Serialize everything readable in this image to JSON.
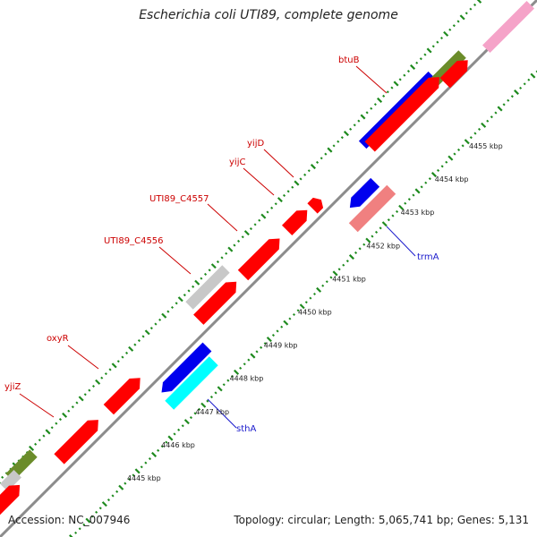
{
  "title": "Escherichia coli UTI89, complete genome",
  "footer": {
    "accession": "Accession: NC_007946",
    "topology": "Topology: circular; Length: 5,065,741 bp; Genes: 5,131"
  },
  "colors": {
    "backbone": "#8c8c8c",
    "tick_outer": "#1e8a1e",
    "tick_inner": "#1e8a1e",
    "label_forward": "#cc0000",
    "label_reverse": "#1a1acc",
    "red": "#ff0000",
    "blue": "#0000ee",
    "olive": "#6b8c2a",
    "grey": "#c8c8c8",
    "pink": "#f5a3c8",
    "salmon": "#f08080",
    "cyan": "#00ffff"
  },
  "kbp_ticks": [
    {
      "label": "4445 kbp"
    },
    {
      "label": "4446 kbp"
    },
    {
      "label": "4447 kbp"
    },
    {
      "label": "4448 kbp"
    },
    {
      "label": "4449 kbp"
    },
    {
      "label": "4450 kbp"
    },
    {
      "label": "4451 kbp"
    },
    {
      "label": "4452 kbp"
    },
    {
      "label": "4453 kbp"
    },
    {
      "label": "4454 kbp"
    },
    {
      "label": "4455 kbp"
    }
  ],
  "gene_labels": [
    {
      "name": "yjiZ",
      "strand": "forward"
    },
    {
      "name": "oxyR",
      "strand": "forward"
    },
    {
      "name": "UTI89_C4556",
      "strand": "forward"
    },
    {
      "name": "UTI89_C4557",
      "strand": "forward"
    },
    {
      "name": "yijC",
      "strand": "forward"
    },
    {
      "name": "yijD",
      "strand": "forward"
    },
    {
      "name": "btuB",
      "strand": "forward"
    },
    {
      "name": "trmA",
      "strand": "reverse"
    },
    {
      "name": "sthA",
      "strand": "reverse"
    }
  ],
  "features": [
    {
      "track": "outer",
      "color": "olive"
    },
    {
      "track": "outer",
      "color": "grey"
    },
    {
      "track": "outer",
      "color": "grey"
    },
    {
      "track": "outer",
      "color": "blue"
    },
    {
      "track": "outer",
      "color": "olive"
    },
    {
      "track": "outer",
      "color": "pink"
    },
    {
      "track": "inner",
      "color": "red"
    },
    {
      "track": "inner",
      "color": "red"
    },
    {
      "track": "inner",
      "color": "red"
    },
    {
      "track": "inner",
      "color": "red"
    },
    {
      "track": "inner",
      "color": "red"
    },
    {
      "track": "inner",
      "color": "red"
    },
    {
      "track": "inner",
      "color": "red"
    },
    {
      "track": "inner",
      "color": "red"
    },
    {
      "track": "inner",
      "color": "red"
    },
    {
      "track": "reverse",
      "color": "blue"
    },
    {
      "track": "reverse",
      "color": "cyan"
    },
    {
      "track": "reverse",
      "color": "blue"
    },
    {
      "track": "reverse",
      "color": "salmon"
    }
  ]
}
